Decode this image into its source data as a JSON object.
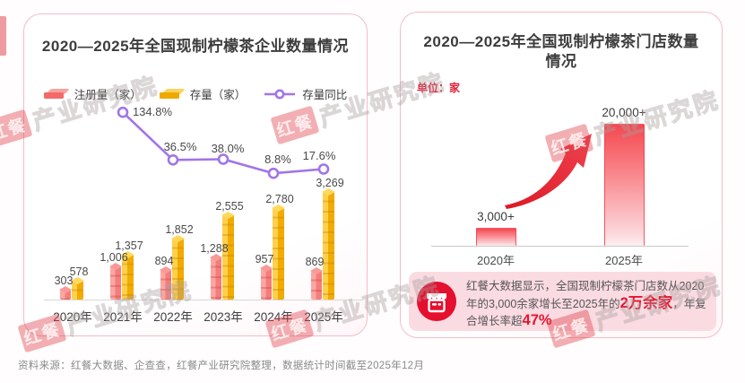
{
  "left_card": {
    "title": "2020—2025年全国现制柠檬茶企业数量情况",
    "legend": [
      {
        "label": "注册量（家）"
      },
      {
        "label": "存量（家）"
      },
      {
        "label": "存量同比"
      }
    ]
  },
  "right_card": {
    "title_line1": "2020—2025年全国现制柠檬茶门店数量",
    "title_line2": "情况",
    "unit_label": "单位：家",
    "callout": {
      "text_part1": "红餐大数据显示，全国现制柠檬茶门店数从2020年的3,000余家增长至2025年的",
      "highlight1": "2万余家",
      "text_part2": "，年复合增长率超",
      "highlight2": "47%"
    }
  },
  "source_note": "资料来源：红餐大数据、企查查，红餐产业研究院整理，数据统计时间截至2025年12月",
  "watermark": {
    "brand": "红餐",
    "name": "产业研究院"
  },
  "colors": {
    "registered_bar": "#f37e7c",
    "stock_bar": "#f2ab00",
    "yoy_line": "#a175e8",
    "store_bar": "#f5484f",
    "highlight_red": "#e5152e"
  },
  "chart_data": [
    {
      "type": "bar",
      "title": "2020—2025年全国现制柠檬茶企业数量情况",
      "categories": [
        "2020年",
        "2021年",
        "2022年",
        "2023年",
        "2024年",
        "2025年"
      ],
      "series": [
        {
          "name": "注册量（家）",
          "type": "bar",
          "color": "#f37e7c",
          "values": [
            303,
            1006,
            894,
            1288,
            957,
            869
          ]
        },
        {
          "name": "存量（家）",
          "type": "bar",
          "color": "#f2ab00",
          "values": [
            578,
            1357,
            1852,
            2555,
            2780,
            3269
          ]
        },
        {
          "name": "存量同比",
          "type": "line",
          "color": "#a175e8",
          "unit": "%",
          "values": [
            null,
            134.8,
            36.5,
            38.0,
            8.8,
            17.6
          ]
        }
      ],
      "legend_position": "top",
      "grid": false
    },
    {
      "type": "bar",
      "title": "2020—2025年全国现制柠檬茶门店数量情况",
      "unit": "家",
      "categories": [
        "2020年",
        "2025年"
      ],
      "values": [
        3000,
        20000
      ],
      "value_labels": [
        "3,000+",
        "20,000+"
      ],
      "annotation": "红餐大数据显示，全国现制柠檬茶门店数从2020年的3,000余家增长至2025年的2万余家，年复合增长率超47%"
    }
  ]
}
